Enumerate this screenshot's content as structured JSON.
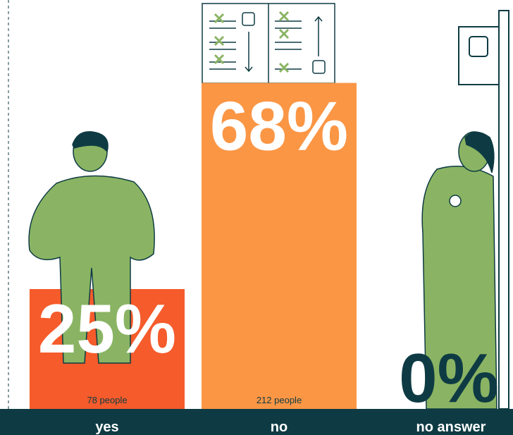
{
  "chart_data": {
    "type": "bar",
    "categories": [
      "yes",
      "no",
      "no answer"
    ],
    "values": [
      25,
      68,
      0
    ],
    "value_labels": [
      "25%",
      "68%",
      "0%"
    ],
    "sample_labels": [
      "78 people",
      "212 people",
      null
    ],
    "colors": [
      "#f55b2b",
      "#fb9645",
      "#fb9645"
    ],
    "label_colors": [
      "#ffffff",
      "#ffffff",
      "#0e3b43"
    ]
  }
}
